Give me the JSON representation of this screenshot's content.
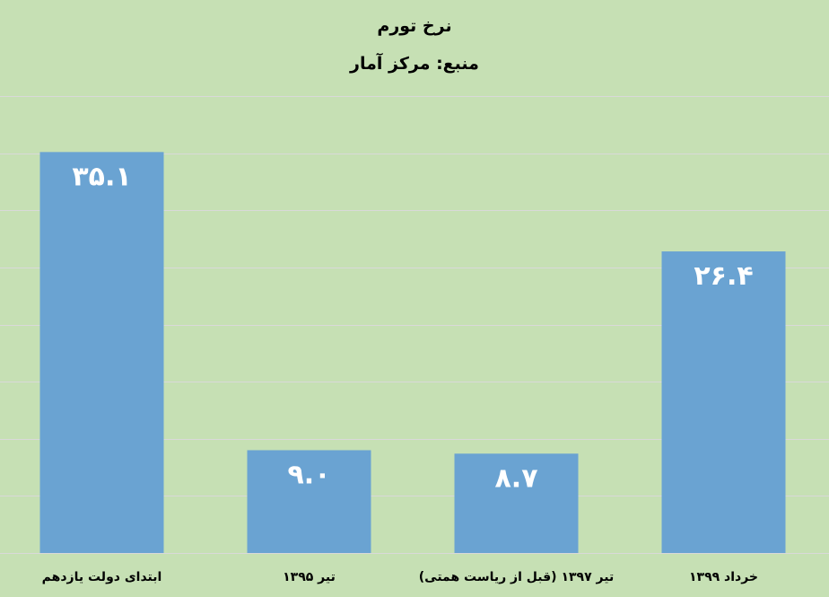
{
  "title": "نرخ تورم",
  "subtitle": "منبع: مرکز آمار",
  "colors": {
    "background": "#c6e0b4",
    "bar": "#6aa3d2",
    "grid": "#d9d9d9",
    "data_label": "#ffffff",
    "text": "#000000"
  },
  "chart_data": {
    "type": "bar",
    "title": "نرخ تورم",
    "subtitle": "منبع: مرکز آمار",
    "categories": [
      "ابتدای دولت یازدهم",
      "تیر ۱۳۹۵",
      "تیر ۱۳۹۷ (قبل از ریاست همتی)",
      "خرداد ۱۳۹۹"
    ],
    "values": [
      35.1,
      9.0,
      8.7,
      26.4
    ],
    "data_labels": [
      "۳۵.۱",
      "۹.۰",
      "۸.۷",
      "۲۶.۴"
    ],
    "xlabel": "",
    "ylabel": "",
    "ylim": [
      0,
      40
    ],
    "y_tick_labels_shown": false,
    "grid": true,
    "legend": "none"
  }
}
